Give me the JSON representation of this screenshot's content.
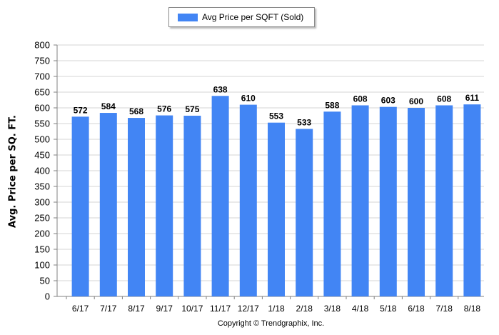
{
  "legend": {
    "label": "Avg Price per SQFT (Sold)",
    "color": "#4285f4"
  },
  "copyright": "Copyright © Trendgraphix, Inc.",
  "chart_data": {
    "type": "bar",
    "title": "",
    "xlabel": "",
    "ylabel": "Avg. Price per SQ. FT.",
    "ylim": [
      0,
      800
    ],
    "yticks": [
      0,
      50,
      100,
      150,
      200,
      250,
      300,
      350,
      400,
      450,
      500,
      550,
      600,
      650,
      700,
      750,
      800
    ],
    "grid": true,
    "legend_position": "top-center",
    "categories": [
      "6/17",
      "7/17",
      "8/17",
      "9/17",
      "10/17",
      "11/17",
      "12/17",
      "1/18",
      "2/18",
      "3/18",
      "4/18",
      "5/18",
      "6/18",
      "7/18",
      "8/18"
    ],
    "series": [
      {
        "name": "Avg Price per SQFT (Sold)",
        "values": [
          572,
          584,
          568,
          576,
          575,
          638,
          610,
          553,
          533,
          588,
          608,
          603,
          600,
          608,
          611
        ],
        "color": "#4285f4"
      }
    ]
  }
}
